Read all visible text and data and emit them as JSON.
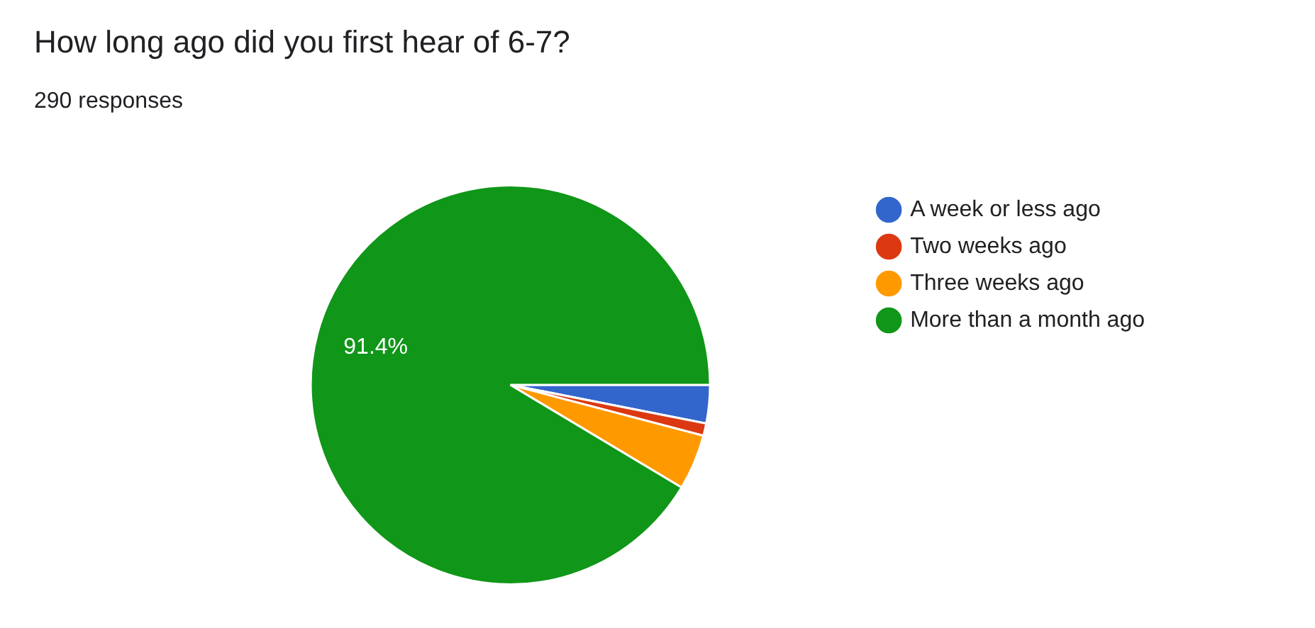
{
  "chart_data": {
    "type": "pie",
    "title": "How long ago did you first hear of 6-7?",
    "subtitle": "290 responses",
    "categories": [
      "A week or less ago",
      "Two weeks ago",
      "Three weeks ago",
      "More than a month ago"
    ],
    "values": [
      3.1,
      1.0,
      4.5,
      91.4
    ],
    "colors": [
      "#3366cc",
      "#dc3912",
      "#ff9900",
      "#109618"
    ],
    "value_labels": [
      null,
      null,
      null,
      "91.4%"
    ],
    "legend": "right"
  }
}
